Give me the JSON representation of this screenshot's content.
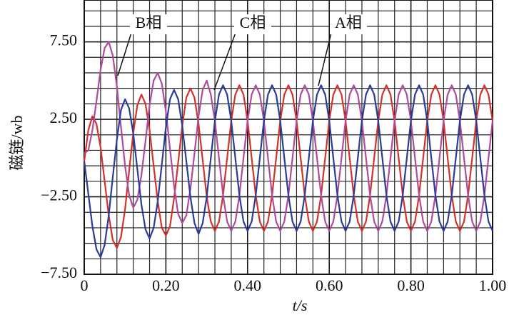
{
  "chart_data": {
    "type": "line",
    "x_label": "t/s",
    "y_label": "磁链/wb",
    "xlim": [
      0,
      1
    ],
    "ylim": [
      -7.5,
      10.2
    ],
    "xticks": [
      0,
      {
        "value": 0.2,
        "label": "0.20"
      },
      {
        "value": 0.4,
        "label": "0.40"
      },
      {
        "value": 0.6,
        "label": "0.60"
      },
      {
        "value": 0.8,
        "label": "0.80"
      },
      {
        "value": 1,
        "label": "1.00"
      }
    ],
    "yticks": [
      {
        "value": -7.5,
        "label": "−7.50"
      },
      {
        "value": -2.5,
        "label": "−2.50"
      },
      {
        "value": 2.5,
        "label": "2.50"
      },
      {
        "value": 7.5,
        "label": "7.50"
      }
    ],
    "grid": true,
    "x": [
      0,
      0.01,
      0.02,
      0.03,
      0.04,
      0.05,
      0.06,
      0.07,
      0.08,
      0.09,
      0.1,
      0.11,
      0.12,
      0.13,
      0.14,
      0.15,
      0.16,
      0.17,
      0.18,
      0.19,
      0.2,
      0.21,
      0.22,
      0.23,
      0.24,
      0.25,
      0.26,
      0.27,
      0.28,
      0.29,
      0.3,
      0.31,
      0.32,
      0.33,
      0.34,
      0.35,
      0.36,
      0.37,
      0.38,
      0.39,
      0.4,
      0.41,
      0.42,
      0.43,
      0.44,
      0.45,
      0.46,
      0.47,
      0.48,
      0.49,
      0.5,
      0.51,
      0.52,
      0.53,
      0.54,
      0.55,
      0.56,
      0.57,
      0.58,
      0.59,
      0.6,
      0.61,
      0.62,
      0.63,
      0.64,
      0.65,
      0.66,
      0.67,
      0.68,
      0.69,
      0.7,
      0.71,
      0.72,
      0.73,
      0.74,
      0.75,
      0.76,
      0.77,
      0.78,
      0.79,
      0.8,
      0.81,
      0.82,
      0.83,
      0.84,
      0.85,
      0.86,
      0.87,
      0.88,
      0.89,
      0.9,
      0.91,
      0.92,
      0.93,
      0.94,
      0.95,
      0.96,
      0.97,
      0.98,
      0.99,
      1
    ],
    "series": [
      {
        "name": "A相",
        "color": "#d2312c",
        "values": [
          -0.2,
          1.8,
          2.7,
          2.2,
          0.7,
          -1.5,
          -3.7,
          -5.3,
          -5.8,
          -5.1,
          -3.3,
          -0.8,
          1.6,
          3.4,
          4.1,
          3.5,
          1.8,
          -0.5,
          -2.8,
          -4.5,
          -5.0,
          -4.4,
          -2.6,
          -0.3,
          2.1,
          3.9,
          4.5,
          3.9,
          2.2,
          -0.1,
          -2.5,
          -4.1,
          -4.7,
          -4.1,
          -2.4,
          0,
          2.4,
          4.1,
          4.7,
          4.1,
          2.4,
          0,
          -2.4,
          -4.1,
          -4.7,
          -4.1,
          -2.4,
          0,
          2.4,
          4.1,
          4.7,
          4.1,
          2.4,
          0,
          -2.4,
          -4.1,
          -4.7,
          -4.1,
          -2.4,
          0,
          2.4,
          4.1,
          4.7,
          4.1,
          2.4,
          0,
          -2.4,
          -4.1,
          -4.7,
          -4.1,
          -2.4,
          0,
          2.4,
          4.1,
          4.7,
          4.1,
          2.4,
          0,
          -2.4,
          -4.1,
          -4.7,
          -4.1,
          -2.4,
          0,
          2.4,
          4.1,
          4.7,
          4.1,
          2.4,
          0,
          -2.4,
          -4.1,
          -4.7,
          -4.1,
          -2.4,
          0,
          2.4,
          4.1,
          4.7,
          4.1,
          2.4
        ]
      },
      {
        "name": "B相",
        "color": "#b04a9a",
        "values": [
          0.3,
          0.5,
          1.8,
          3.7,
          5.7,
          7.1,
          7.5,
          6.6,
          4.6,
          2.0,
          -0.5,
          -2.4,
          -3.2,
          -2.7,
          -1.1,
          1.1,
          3.4,
          5.0,
          5.5,
          4.8,
          3.0,
          0.6,
          -1.8,
          -3.6,
          -4.2,
          -3.7,
          -2.0,
          0.3,
          2.7,
          4.4,
          5.0,
          4.1,
          2.4,
          0,
          -2.4,
          -4.1,
          -4.7,
          -4.1,
          -2.4,
          0,
          2.4,
          4.1,
          4.7,
          4.1,
          2.4,
          0,
          -2.4,
          -4.1,
          -4.7,
          -4.1,
          -2.4,
          0,
          2.4,
          4.1,
          4.7,
          4.1,
          2.4,
          0,
          -2.4,
          -4.1,
          -4.7,
          -4.1,
          -2.4,
          0,
          2.4,
          4.1,
          4.7,
          4.1,
          2.4,
          0,
          -2.4,
          -4.1,
          -4.7,
          -4.1,
          -2.4,
          0,
          2.4,
          4.1,
          4.7,
          4.1,
          2.4,
          0,
          -2.4,
          -4.1,
          -4.7,
          -4.1,
          -2.4,
          0,
          2.4,
          4.1,
          4.7,
          4.1,
          2.4,
          0,
          -2.4,
          -4.1,
          -4.7,
          -4.1,
          -2.4,
          0,
          2.4
        ]
      },
      {
        "name": "C相",
        "color": "#2a3b9c",
        "values": [
          -0.2,
          -2.3,
          -4.4,
          -5.9,
          -6.4,
          -5.6,
          -3.7,
          -1.2,
          1.2,
          3.1,
          3.8,
          3.2,
          1.6,
          -0.7,
          -3.0,
          -4.6,
          -5.2,
          -4.5,
          -2.8,
          -0.4,
          2.0,
          3.8,
          4.4,
          3.8,
          2.1,
          -0.2,
          -2.5,
          -4.2,
          -4.9,
          -4.2,
          -2.5,
          0,
          2.4,
          4.1,
          4.7,
          4.1,
          2.4,
          0,
          -2.4,
          -4.1,
          -4.7,
          -4.1,
          -2.4,
          0,
          2.4,
          4.1,
          4.7,
          4.1,
          2.4,
          0,
          -2.4,
          -4.1,
          -4.7,
          -4.1,
          -2.4,
          0,
          2.4,
          4.1,
          4.7,
          4.1,
          2.4,
          0,
          -2.4,
          -4.1,
          -4.7,
          -4.1,
          -2.4,
          0,
          2.4,
          4.1,
          4.7,
          4.1,
          2.4,
          0,
          -2.4,
          -4.1,
          -4.7,
          -4.1,
          -2.4,
          0,
          2.4,
          4.1,
          4.7,
          4.1,
          2.4,
          0,
          -2.4,
          -4.1,
          -4.7,
          -4.1,
          -2.4,
          0,
          2.4,
          4.1,
          4.7,
          4.1,
          2.4,
          0,
          -2.4,
          -4.1,
          -4.7
        ]
      }
    ]
  }
}
